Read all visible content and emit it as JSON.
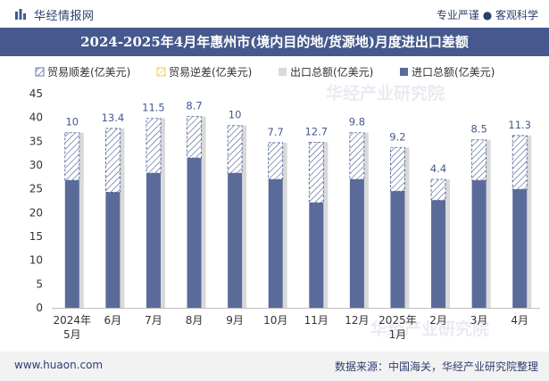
{
  "header": {
    "brand": "华经情报网",
    "tagline": "专业严谨 ● 客观科学"
  },
  "title": "2024-2025年4月年惠州市(境内目的地/货源地)月度进出口差额",
  "footer": {
    "url": "www.huaon.com",
    "source": "数据来源：中国海关，华经产业研究院整理"
  },
  "watermark": "华经产业研究院",
  "chart_data": {
    "type": "bar",
    "title": "2024-2025年4月年惠州市(境内目的地/货源地)月度进出口差额",
    "categories": [
      "2024年\n5月",
      "6月",
      "7月",
      "8月",
      "9月",
      "10月",
      "11月",
      "12月",
      "2025年\n1月",
      "2月",
      "3月",
      "4月"
    ],
    "ylim": [
      0,
      45
    ],
    "yticks": [
      0,
      5,
      10,
      15,
      20,
      25,
      30,
      35,
      40,
      45
    ],
    "grid": false,
    "legend_position": "top",
    "series": [
      {
        "name": "贸易顺差(亿美元)",
        "values": [
          10,
          13.4,
          11.5,
          8.7,
          10,
          7.7,
          12.7,
          9.8,
          9.2,
          4.4,
          8.5,
          11.3
        ],
        "color": "#45598e",
        "style": "hatched"
      },
      {
        "name": "贸易逆差(亿美元)",
        "values": [
          0,
          0,
          0,
          0,
          0,
          0,
          0,
          0,
          0,
          0,
          0,
          0
        ],
        "color": "#f0c419",
        "style": "hatched"
      },
      {
        "name": "出口总额(亿美元)",
        "values": [
          36.8,
          37.7,
          39.8,
          40.2,
          38.3,
          34.7,
          34.8,
          36.8,
          33.7,
          27.0,
          35.3,
          36.2
        ],
        "color": "#d9d9d9"
      },
      {
        "name": "进口总额(亿美元)",
        "values": [
          26.8,
          24.3,
          28.3,
          31.5,
          28.3,
          27.0,
          22.1,
          27.0,
          24.5,
          22.6,
          26.8,
          24.9
        ],
        "color": "#5a6b9a"
      }
    ],
    "data_labels": [
      "10",
      "13.4",
      "11.5",
      "8.7",
      "10",
      "7.7",
      "12.7",
      "9.8",
      "9.2",
      "4.4",
      "8.5",
      "11.3"
    ]
  }
}
